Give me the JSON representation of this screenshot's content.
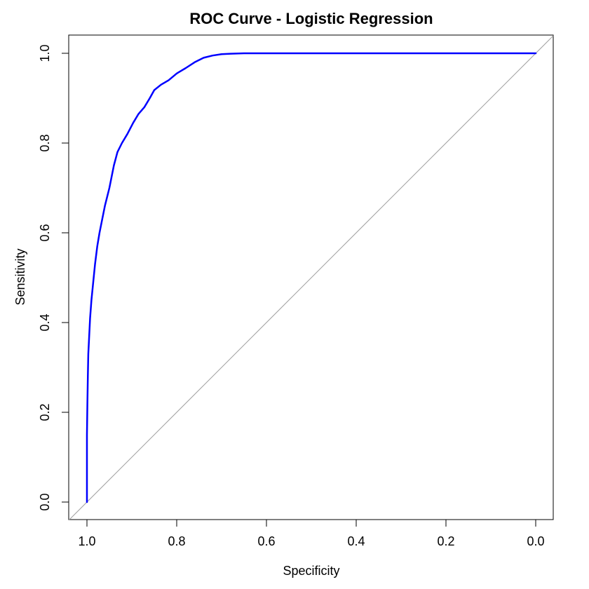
{
  "chart_data": {
    "type": "line",
    "title": "ROC Curve - Logistic Regression",
    "xlabel": "Specificity",
    "ylabel": "Sensitivity",
    "x_reversed": true,
    "xlim": [
      1.0,
      0.0
    ],
    "ylim": [
      0.0,
      1.0
    ],
    "x_ticks": [
      "1.0",
      "0.8",
      "0.6",
      "0.4",
      "0.2",
      "0.0"
    ],
    "y_ticks": [
      "0.0",
      "0.2",
      "0.4",
      "0.6",
      "0.8",
      "1.0"
    ],
    "grid": false,
    "legend": "none",
    "colors": {
      "roc": "#0000ff",
      "reference": "#a0a0a0",
      "axes": "#000000"
    },
    "reference_line": {
      "from": [
        1.0,
        0.0
      ],
      "to": [
        0.0,
        1.0
      ]
    },
    "series": [
      {
        "specificity": [
          1.0,
          1.0,
          0.999,
          0.998,
          0.997,
          0.995,
          0.993,
          0.99,
          0.986,
          0.982,
          0.977,
          0.972,
          0.966,
          0.96,
          0.955,
          0.95,
          0.945,
          0.94,
          0.932,
          0.922,
          0.91,
          0.897,
          0.885,
          0.872,
          0.86,
          0.85,
          0.835,
          0.818,
          0.8,
          0.78,
          0.76,
          0.74,
          0.72,
          0.7,
          0.68,
          0.65,
          0.6,
          0.5,
          0.3,
          0.0
        ],
        "sensitivity": [
          0.0,
          0.15,
          0.22,
          0.28,
          0.33,
          0.37,
          0.41,
          0.45,
          0.49,
          0.53,
          0.57,
          0.6,
          0.63,
          0.66,
          0.68,
          0.7,
          0.725,
          0.75,
          0.78,
          0.8,
          0.82,
          0.845,
          0.865,
          0.88,
          0.9,
          0.918,
          0.93,
          0.94,
          0.955,
          0.967,
          0.98,
          0.99,
          0.995,
          0.998,
          0.999,
          1.0,
          1.0,
          1.0,
          1.0,
          1.0
        ]
      }
    ]
  }
}
